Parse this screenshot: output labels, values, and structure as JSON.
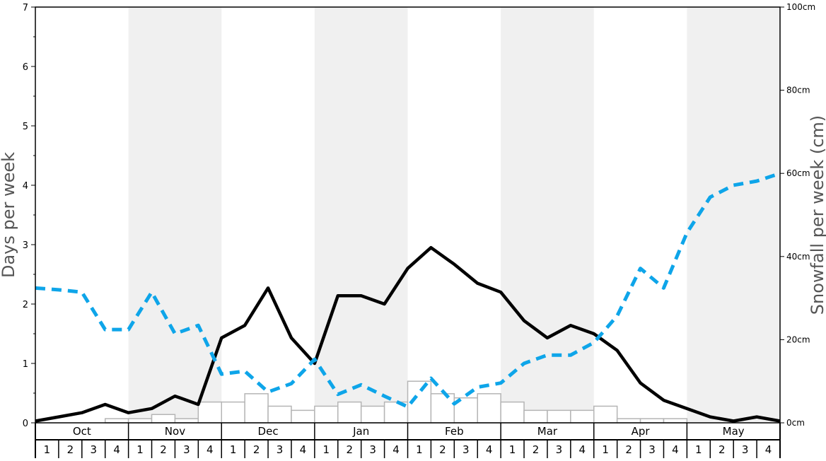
{
  "chart_data": {
    "type": "bar+line",
    "ylabel_left": "Days per week",
    "ylabel_right": "Snowfall per week (cm)",
    "ylim_left": [
      0,
      7
    ],
    "ylim_right": [
      0,
      100
    ],
    "left_ticks": [
      "0",
      "1",
      "2",
      "3",
      "4",
      "5",
      "6",
      "7"
    ],
    "right_ticks": [
      "0cm",
      "20cm",
      "40cm",
      "60cm",
      "80cm",
      "100cm"
    ],
    "months": [
      "Oct",
      "Nov",
      "Dec",
      "Jan",
      "Feb",
      "Mar",
      "Apr",
      "May"
    ],
    "weeks": [
      "1",
      "2",
      "3",
      "4"
    ],
    "shaded_months": [
      "Nov",
      "Jan",
      "Mar",
      "May"
    ],
    "bars": {
      "axis": "right",
      "unit": "cm",
      "values": [
        0,
        0,
        0,
        1,
        1,
        2,
        1,
        5,
        5,
        7,
        4,
        3,
        4,
        5,
        4,
        5,
        10,
        7,
        6,
        7,
        5,
        3,
        3,
        3,
        4,
        1,
        1,
        1,
        0,
        0,
        0,
        0
      ]
    },
    "series": [
      {
        "style": "solid",
        "color": "#000000",
        "axis": "left",
        "values": [
          0.03,
          0.1,
          0.17,
          0.31,
          0.17,
          0.24,
          0.45,
          0.31,
          1.43,
          1.64,
          2.27,
          1.43,
          1.0,
          2.14,
          2.14,
          2.0,
          2.6,
          2.95,
          2.67,
          2.35,
          2.2,
          1.72,
          1.43,
          1.64,
          1.5,
          1.22,
          0.67,
          0.38,
          0.24,
          0.1,
          0.03,
          0.1,
          0.03
        ]
      },
      {
        "style": "dashed",
        "color": "#0ea5e9",
        "axis": "left",
        "values": [
          2.27,
          2.24,
          2.2,
          1.57,
          1.57,
          2.2,
          1.5,
          1.64,
          0.82,
          0.87,
          0.52,
          0.66,
          1.07,
          0.48,
          0.64,
          0.45,
          0.27,
          0.75,
          0.32,
          0.6,
          0.67,
          1.0,
          1.14,
          1.14,
          1.35,
          1.8,
          2.6,
          2.27,
          3.2,
          3.8,
          4.0,
          4.07,
          4.2
        ]
      }
    ],
    "grid": false
  }
}
